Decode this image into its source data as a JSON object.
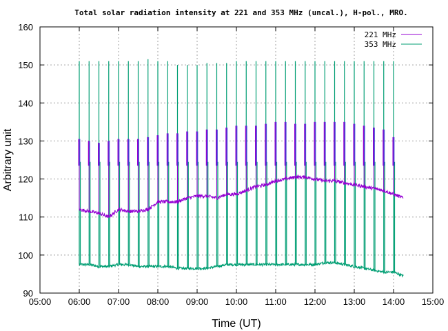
{
  "chart_data": {
    "type": "line",
    "title": "Total solar radiation intensity at 221 and 353 MHz (uncal.), H-pol., MRO.",
    "xlabel": "Time (UT)",
    "ylabel": "Arbitrary unit",
    "xlim": [
      5,
      15
    ],
    "ylim": [
      90,
      160
    ],
    "x_ticks": [
      "05:00",
      "06:00",
      "07:00",
      "08:00",
      "09:00",
      "10:00",
      "11:00",
      "12:00",
      "13:00",
      "14:00",
      "15:00"
    ],
    "y_ticks": [
      "90",
      "100",
      "110",
      "120",
      "130",
      "140",
      "150",
      "160"
    ],
    "grid": true,
    "legend_position": "top-right",
    "calibration_spike_times": [
      6.0,
      6.25,
      6.5,
      6.75,
      7.0,
      7.25,
      7.5,
      7.75,
      8.0,
      8.25,
      8.5,
      8.75,
      9.0,
      9.25,
      9.5,
      9.75,
      10.0,
      10.25,
      10.5,
      10.75,
      11.0,
      11.25,
      11.5,
      11.75,
      12.0,
      12.25,
      12.5,
      12.75,
      13.0,
      13.25,
      13.5,
      13.75,
      14.0
    ],
    "series": [
      {
        "name": "221 MHz",
        "color": "#9400d3",
        "x": [
          6.0,
          6.25,
          6.5,
          6.75,
          7.0,
          7.25,
          7.5,
          7.75,
          8.0,
          8.25,
          8.5,
          8.75,
          9.0,
          9.25,
          9.5,
          9.75,
          10.0,
          10.25,
          10.5,
          10.75,
          11.0,
          11.25,
          11.5,
          11.75,
          12.0,
          12.25,
          12.5,
          12.75,
          13.0,
          13.25,
          13.5,
          13.75,
          14.0,
          14.25
        ],
        "baseline": [
          112,
          111.5,
          111,
          110,
          112,
          111.5,
          111.5,
          112,
          114,
          114,
          114,
          115,
          115.5,
          115.5,
          115,
          116,
          116,
          117,
          118,
          118.5,
          119.5,
          120,
          120.5,
          120.5,
          120,
          119.5,
          119.5,
          119,
          118.5,
          118,
          117.5,
          117,
          116,
          115
        ],
        "spike_high": [
          130.5,
          130,
          129.5,
          130,
          130.5,
          130.5,
          130.5,
          131,
          131.5,
          132,
          132,
          132.5,
          132.5,
          133,
          133,
          133.5,
          134,
          134,
          134,
          134.5,
          135,
          135,
          134.5,
          134.5,
          135,
          135,
          135,
          135,
          134.5,
          134,
          133.5,
          133,
          131
        ]
      },
      {
        "name": "353 MHz",
        "color": "#009e73",
        "x": [
          6.0,
          6.25,
          6.5,
          6.75,
          7.0,
          7.25,
          7.5,
          7.75,
          8.0,
          8.25,
          8.5,
          8.75,
          9.0,
          9.25,
          9.5,
          9.75,
          10.0,
          10.25,
          10.5,
          10.75,
          11.0,
          11.25,
          11.5,
          11.75,
          12.0,
          12.25,
          12.5,
          12.75,
          13.0,
          13.25,
          13.5,
          13.75,
          14.0,
          14.25
        ],
        "baseline": [
          97.5,
          97.5,
          97,
          97,
          97.5,
          97.5,
          97,
          97,
          97,
          97,
          96.5,
          96.5,
          96.5,
          96.5,
          97,
          97.5,
          97.5,
          97.5,
          97.5,
          97.5,
          97.5,
          97.5,
          97.5,
          97.5,
          97.5,
          98,
          98,
          97.5,
          97,
          96.5,
          96,
          95.5,
          95.5,
          94.5
        ],
        "spike_high": [
          151,
          151,
          151,
          151,
          151,
          151,
          151,
          151.5,
          151,
          151,
          150,
          150,
          150,
          150.5,
          150.5,
          150.5,
          151,
          151,
          151,
          151,
          151,
          151,
          151,
          151,
          151,
          151,
          151,
          151,
          151,
          151,
          151,
          151,
          151
        ]
      }
    ]
  }
}
